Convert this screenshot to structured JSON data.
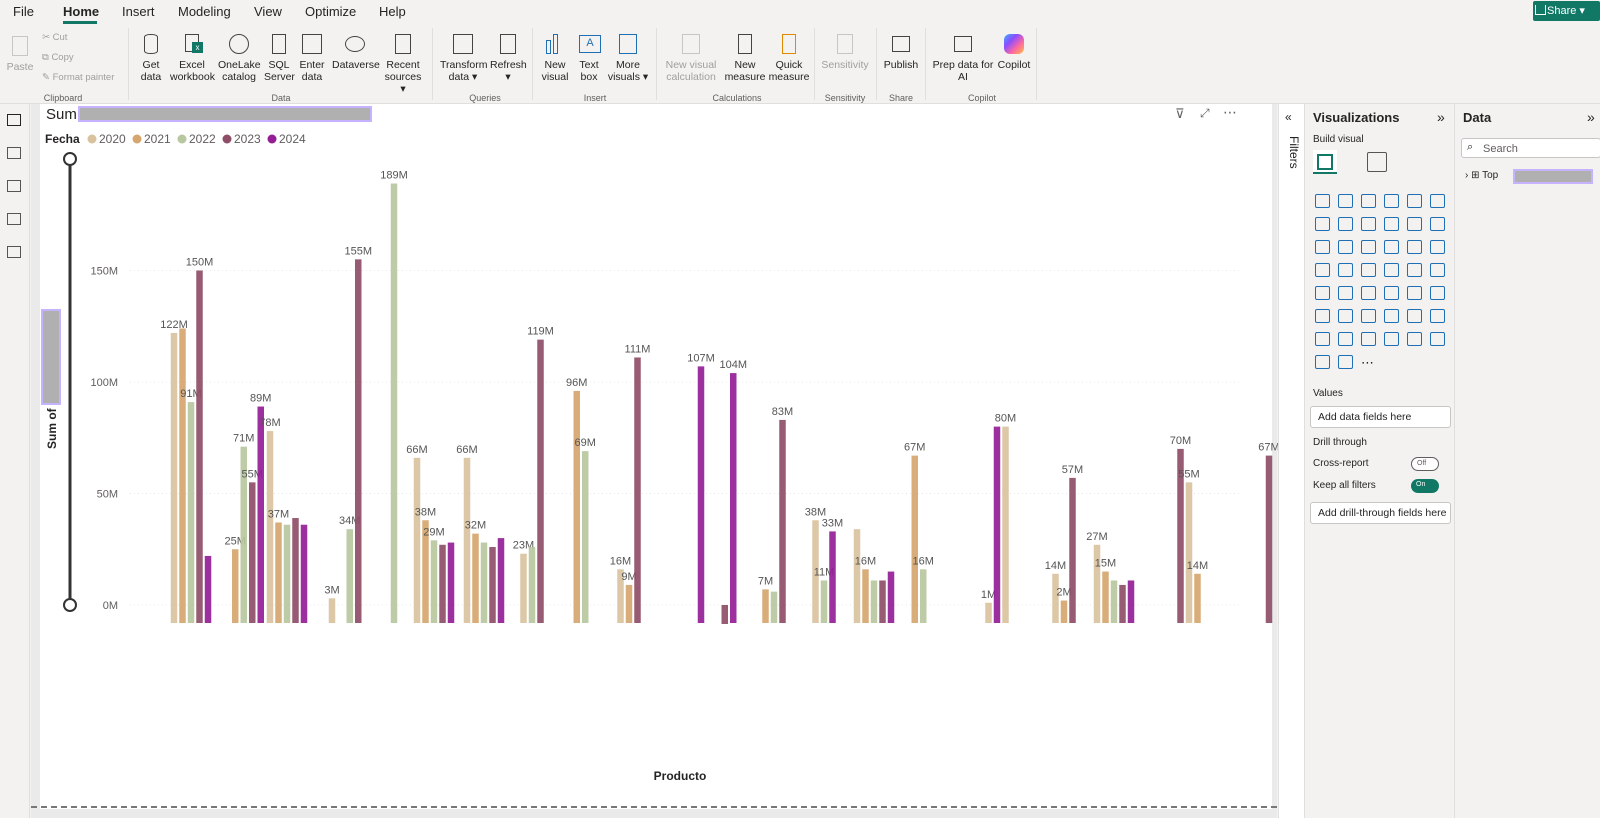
{
  "menu": {
    "items": [
      "File",
      "Home",
      "Insert",
      "Modeling",
      "View",
      "Optimize",
      "Help"
    ],
    "share": "Share"
  },
  "ribbon": {
    "clipboard": {
      "paste": "Paste",
      "cut": "Cut",
      "copy": "Copy",
      "format_painter": "Format painter",
      "group": "Clipboard"
    },
    "data": {
      "get_data": "Get data",
      "excel": "Excel workbook",
      "onelake": "OneLake catalog",
      "sql": "SQL Server",
      "enter": "Enter data",
      "dataverse": "Dataverse",
      "recent": "Recent sources",
      "group": "Data"
    },
    "queries": {
      "transform": "Transform data",
      "refresh": "Refresh",
      "group": "Queries"
    },
    "insert": {
      "new_visual": "New visual",
      "text_box": "Text box",
      "more_visuals": "More visuals",
      "group": "Insert"
    },
    "calculations": {
      "new_visual_calc": "New visual calculation",
      "new_measure": "New measure",
      "quick_measure": "Quick measure",
      "group": "Calculations"
    },
    "sensitivity": {
      "label": "Sensitivity",
      "group": "Sensitivity"
    },
    "share": {
      "publish": "Publish",
      "group": "Share"
    },
    "copilot": {
      "prep": "Prep data for AI",
      "copilot": "Copilot",
      "group": "Copilot"
    }
  },
  "visual": {
    "title": "Sum",
    "legend_title": "Fecha",
    "yaxis_title": "Sum of",
    "xaxis_title": "Producto"
  },
  "filters_pane": {
    "label": "Filters"
  },
  "viz_pane": {
    "title": "Visualizations",
    "build_visual": "Build visual",
    "values": "Values",
    "add_data": "Add data fields here",
    "drill_through": "Drill through",
    "cross_report": "Cross-report",
    "cross_report_state": "Off",
    "keep_filters": "Keep all filters",
    "keep_filters_state": "On",
    "add_drill": "Add drill-through fields here"
  },
  "data_pane": {
    "title": "Data",
    "search_placeholder": "Search",
    "table": "Top"
  },
  "colors": {
    "accent": "#117865",
    "s2020": "#d9c29e",
    "s2021": "#d5a66e",
    "s2022": "#b7c7a0",
    "s2023": "#8e4e67",
    "s2024": "#941e96"
  },
  "chart_data": {
    "type": "bar",
    "title": "Sum",
    "xlabel": "Producto",
    "ylabel": "Sum of",
    "ylim": [
      0,
      200
    ],
    "yticks": [
      "0M",
      "50M",
      "100M",
      "150M"
    ],
    "legend_position": "top-left",
    "series": [
      {
        "name": "2020"
      },
      {
        "name": "2021"
      },
      {
        "name": "2022"
      },
      {
        "name": "2023"
      },
      {
        "name": "2024"
      }
    ],
    "groups": [
      {
        "x": 152,
        "bars": [
          {
            "s": 0,
            "v": 122,
            "label": "122M"
          },
          {
            "s": 1,
            "v": 124
          },
          {
            "s": 2,
            "v": 91,
            "label": "91M"
          },
          {
            "s": 3,
            "v": 150,
            "label": "150M"
          },
          {
            "s": 4,
            "v": 22
          }
        ]
      },
      {
        "x": 209,
        "bars": [
          {
            "s": 1,
            "v": 25,
            "label": "25M"
          },
          {
            "s": 2,
            "v": 71,
            "label": "71M"
          },
          {
            "s": 3,
            "v": 55,
            "label": "55M"
          },
          {
            "s": 4,
            "v": 89,
            "label": "89M"
          }
        ]
      },
      {
        "x": 248,
        "bars": [
          {
            "s": 0,
            "v": 78,
            "label": "78M"
          },
          {
            "s": 1,
            "v": 37,
            "label": "37M"
          },
          {
            "s": 2,
            "v": 36
          },
          {
            "s": 3,
            "v": 39
          },
          {
            "s": 4,
            "v": 36
          }
        ]
      },
      {
        "x": 293,
        "bars": [
          {
            "s": 0,
            "v": 3,
            "label": "3M"
          }
        ]
      },
      {
        "x": 315,
        "bars": [
          {
            "s": 2,
            "v": 34,
            "label": "34M"
          },
          {
            "s": 3,
            "v": 155,
            "label": "155M"
          }
        ]
      },
      {
        "x": 355,
        "bars": [
          {
            "s": 2,
            "v": 189,
            "label": "189M"
          }
        ]
      },
      {
        "x": 395,
        "bars": [
          {
            "s": 0,
            "v": 66,
            "label": "66M"
          },
          {
            "s": 1,
            "v": 38,
            "label": "38M"
          },
          {
            "s": 2,
            "v": 29,
            "label": "29M"
          },
          {
            "s": 3,
            "v": 27
          },
          {
            "s": 4,
            "v": 28
          }
        ]
      },
      {
        "x": 445,
        "bars": [
          {
            "s": 0,
            "v": 66,
            "label": "66M"
          },
          {
            "s": 1,
            "v": 32,
            "label": "32M"
          },
          {
            "s": 2,
            "v": 28
          },
          {
            "s": 3,
            "v": 26
          },
          {
            "s": 4,
            "v": 30
          }
        ]
      },
      {
        "x": 493,
        "bars": [
          {
            "s": 0,
            "v": 23,
            "label": "23M"
          },
          {
            "s": 2,
            "v": 26
          },
          {
            "s": 3,
            "v": 119,
            "label": "119M"
          }
        ]
      },
      {
        "x": 542,
        "bars": [
          {
            "s": 1,
            "v": 96,
            "label": "96M"
          },
          {
            "s": 2,
            "v": 69,
            "label": "69M"
          }
        ]
      },
      {
        "x": 590,
        "bars": [
          {
            "s": 0,
            "v": 16,
            "label": "16M"
          },
          {
            "s": 1,
            "v": 9,
            "label": "9M"
          },
          {
            "s": 3,
            "v": 111,
            "label": "111M"
          }
        ]
      },
      {
        "x": 662,
        "bars": [
          {
            "s": 4,
            "v": 107,
            "label": "107M"
          }
        ]
      },
      {
        "x": 690,
        "bars": [
          {
            "s": 3,
            "v": 0
          },
          {
            "s": 4,
            "v": 104,
            "label": "104M"
          }
        ]
      },
      {
        "x": 735,
        "bars": [
          {
            "s": 1,
            "v": 7,
            "label": "7M"
          },
          {
            "s": 2,
            "v": 6
          },
          {
            "s": 3,
            "v": 83,
            "label": "83M"
          }
        ]
      },
      {
        "x": 785,
        "bars": [
          {
            "s": 0,
            "v": 38,
            "label": "38M"
          },
          {
            "s": 2,
            "v": 11,
            "label": "11M"
          },
          {
            "s": 4,
            "v": 33,
            "label": "33M"
          }
        ]
      },
      {
        "x": 835,
        "bars": [
          {
            "s": 0,
            "v": 34
          },
          {
            "s": 1,
            "v": 16,
            "label": "16M"
          },
          {
            "s": 2,
            "v": 11
          },
          {
            "s": 3,
            "v": 11
          },
          {
            "s": 4,
            "v": 15
          }
        ]
      },
      {
        "x": 880,
        "bars": [
          {
            "s": 1,
            "v": 67,
            "label": "67M"
          },
          {
            "s": 2,
            "v": 16,
            "label": "16M"
          }
        ]
      },
      {
        "x": 958,
        "bars": [
          {
            "s": 0,
            "v": 1,
            "label": "1M"
          },
          {
            "s": 4,
            "v": 80
          },
          {
            "s": 0,
            "v": 80,
            "label": "80M"
          }
        ]
      },
      {
        "x": 1025,
        "bars": [
          {
            "s": 0,
            "v": 14,
            "label": "14M"
          },
          {
            "s": 1,
            "v": 2,
            "label": "2M"
          },
          {
            "s": 3,
            "v": 57,
            "label": "57M"
          }
        ]
      },
      {
        "x": 1075,
        "bars": [
          {
            "s": 0,
            "v": 27,
            "label": "27M"
          },
          {
            "s": 1,
            "v": 15,
            "label": "15M"
          },
          {
            "s": 2,
            "v": 11
          },
          {
            "s": 3,
            "v": 9
          },
          {
            "s": 4,
            "v": 11
          }
        ]
      },
      {
        "x": 1150,
        "bars": [
          {
            "s": 3,
            "v": 70,
            "label": "70M"
          },
          {
            "s": 0,
            "v": 55,
            "label": "55M"
          },
          {
            "s": 1,
            "v": 14,
            "label": "14M"
          }
        ]
      },
      {
        "x": 1230,
        "bars": [
          {
            "s": 3,
            "v": 67,
            "label": "67M"
          }
        ]
      }
    ]
  }
}
